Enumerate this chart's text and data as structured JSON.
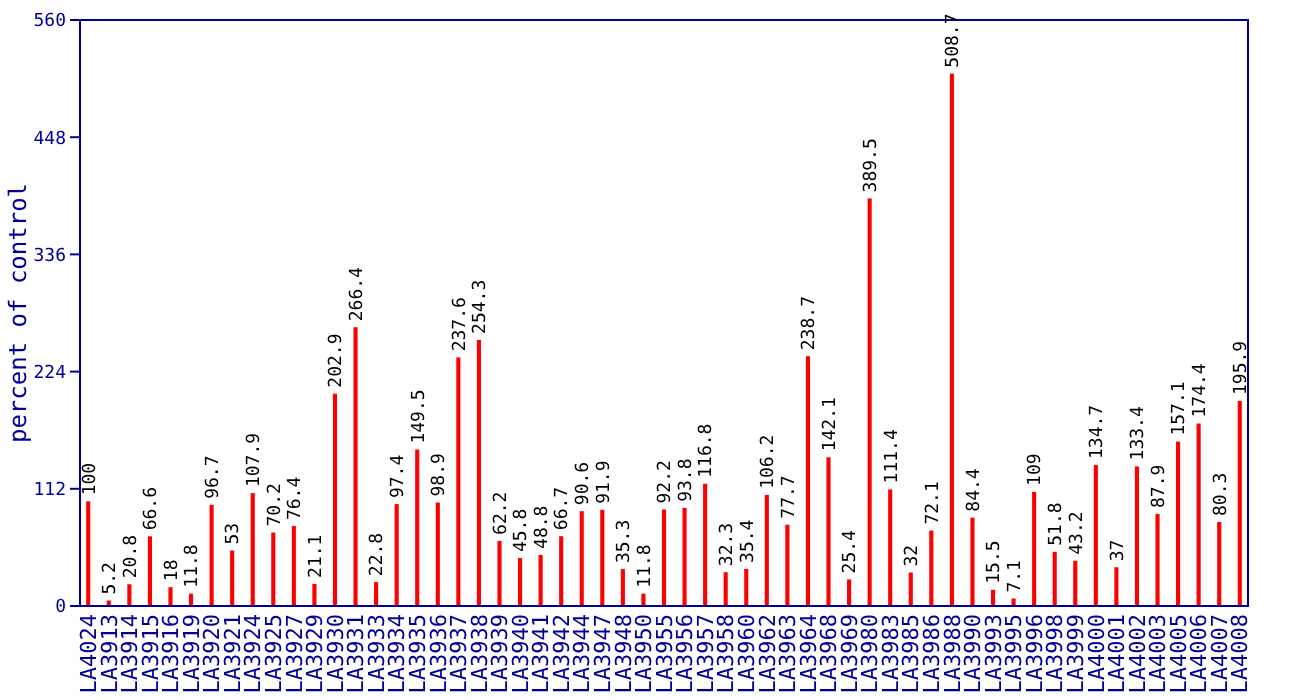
{
  "chart_data": {
    "type": "bar",
    "ylabel": "percent of control",
    "categories": [
      "LA4024",
      "LA3913",
      "LA3914",
      "LA3915",
      "LA3916",
      "LA3919",
      "LA3920",
      "LA3921",
      "LA3924",
      "LA3925",
      "LA3927",
      "LA3929",
      "LA3930",
      "LA3931",
      "LA3933",
      "LA3934",
      "LA3935",
      "LA3936",
      "LA3937",
      "LA3938",
      "LA3939",
      "LA3940",
      "LA3941",
      "LA3942",
      "LA3944",
      "LA3947",
      "LA3948",
      "LA3950",
      "LA3955",
      "LA3956",
      "LA3957",
      "LA3958",
      "LA3960",
      "LA3962",
      "LA3963",
      "LA3964",
      "LA3968",
      "LA3969",
      "LA3980",
      "LA3983",
      "LA3985",
      "LA3986",
      "LA3988",
      "LA3990",
      "LA3993",
      "LA3995",
      "LA3996",
      "LA3998",
      "LA3999",
      "LA4000",
      "LA4001",
      "LA4002",
      "LA4003",
      "LA4005",
      "LA4006",
      "LA4007",
      "LA4008"
    ],
    "values": [
      100,
      5.2,
      20.8,
      66.6,
      18,
      11.8,
      96.7,
      53,
      107.9,
      70.2,
      76.4,
      21.1,
      202.9,
      266.4,
      22.8,
      97.4,
      149.5,
      98.9,
      237.6,
      254.3,
      62.2,
      45.8,
      48.8,
      66.7,
      90.6,
      91.9,
      35.3,
      11.8,
      92.2,
      93.8,
      116.8,
      32.3,
      35.4,
      106.2,
      77.7,
      238.7,
      142.1,
      25.4,
      389.5,
      111.4,
      32,
      72.1,
      508.7,
      84.4,
      15.5,
      7.1,
      109,
      51.8,
      43.2,
      134.7,
      37,
      133.4,
      87.9,
      157.1,
      174.4,
      80.3,
      195.9
    ],
    "color": "#ff0000",
    "ylim": [
      0,
      560
    ],
    "yticks": [
      0,
      112,
      224,
      336,
      448,
      560
    ],
    "data_labels": true
  }
}
